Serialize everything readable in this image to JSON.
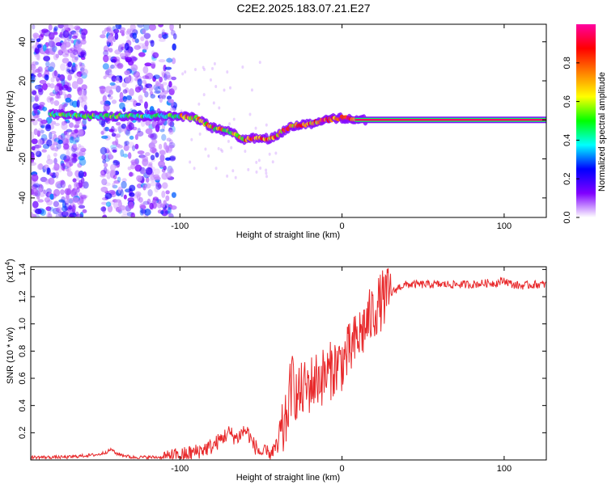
{
  "title": "C2E2.2025.183.07.21.E27",
  "chart_data": [
    {
      "type": "heatmap",
      "xlabel": "Height of straight line (km)",
      "ylabel": "Frequency (Hz)",
      "xlim": [
        -192,
        126
      ],
      "ylim": [
        -50,
        49
      ],
      "xticks": [
        -100,
        0,
        100
      ],
      "yticks": [
        -40,
        -20,
        0,
        20,
        40
      ],
      "colorbar": {
        "label": "Normalized spectral amplitude",
        "range": [
          0,
          1
        ],
        "ticks": [
          0.0,
          0.2,
          0.4,
          0.6,
          0.8
        ],
        "tick_labels": [
          "0.0",
          "0.2",
          "0.4",
          "0.6",
          "0.8"
        ],
        "colors": [
          "#ffffff",
          "#8000ff",
          "#0000ff",
          "#00ffff",
          "#00ff00",
          "#ffff00",
          "#ff8000",
          "#ff0000",
          "#ff00a0"
        ]
      },
      "ridge_frequency": {
        "x": [
          -180,
          -160,
          -140,
          -120,
          -100,
          -90,
          -80,
          -70,
          -60,
          -50,
          -45,
          -40,
          -35,
          -30,
          -20,
          -10,
          0,
          10,
          20,
          40,
          60,
          80,
          100,
          126
        ],
        "y": [
          3,
          2,
          2,
          2,
          2,
          1,
          -4,
          -6,
          -10,
          -9,
          -10,
          -8,
          -5,
          -3,
          -2,
          0,
          1,
          0,
          0,
          0,
          0,
          0,
          0,
          0
        ]
      }
    },
    {
      "type": "line",
      "xlabel": "Height of straight line (km)",
      "ylabel": "SNR (10 * v/v)",
      "y_multiplier": "(x10",
      "y_multiplier_exp": "4",
      "xlim": [
        -192,
        126
      ],
      "ylim": [
        0,
        1.42
      ],
      "xticks": [
        -100,
        0,
        100
      ],
      "yticks": [
        0.2,
        0.4,
        0.6,
        0.8,
        1.0,
        1.2,
        1.4
      ],
      "color": "#e8282a",
      "series": [
        {
          "x": [
            -192,
            -170,
            -150,
            -145,
            -142,
            -140,
            -130,
            -110,
            -100,
            -90,
            -80,
            -75,
            -70,
            -65,
            -60,
            -58,
            -55,
            -50,
            -45,
            -40,
            -35,
            -32,
            -30,
            -28,
            -25,
            -20,
            -15,
            -10,
            -5,
            0,
            5,
            10,
            15,
            20,
            25,
            30,
            35,
            40,
            50,
            60,
            70,
            80,
            90,
            95,
            100,
            105,
            110,
            120,
            126
          ],
          "y": [
            0.02,
            0.02,
            0.04,
            0.06,
            0.08,
            0.05,
            0.02,
            0.02,
            0.03,
            0.06,
            0.1,
            0.15,
            0.2,
            0.16,
            0.22,
            0.2,
            0.12,
            0.05,
            0.05,
            0.1,
            0.25,
            0.5,
            0.6,
            0.45,
            0.5,
            0.55,
            0.6,
            0.62,
            0.68,
            0.72,
            0.8,
            0.9,
            1.0,
            1.1,
            1.18,
            1.22,
            1.27,
            1.29,
            1.29,
            1.29,
            1.29,
            1.29,
            1.3,
            1.3,
            1.32,
            1.29,
            1.28,
            1.29,
            1.29
          ]
        }
      ]
    }
  ]
}
